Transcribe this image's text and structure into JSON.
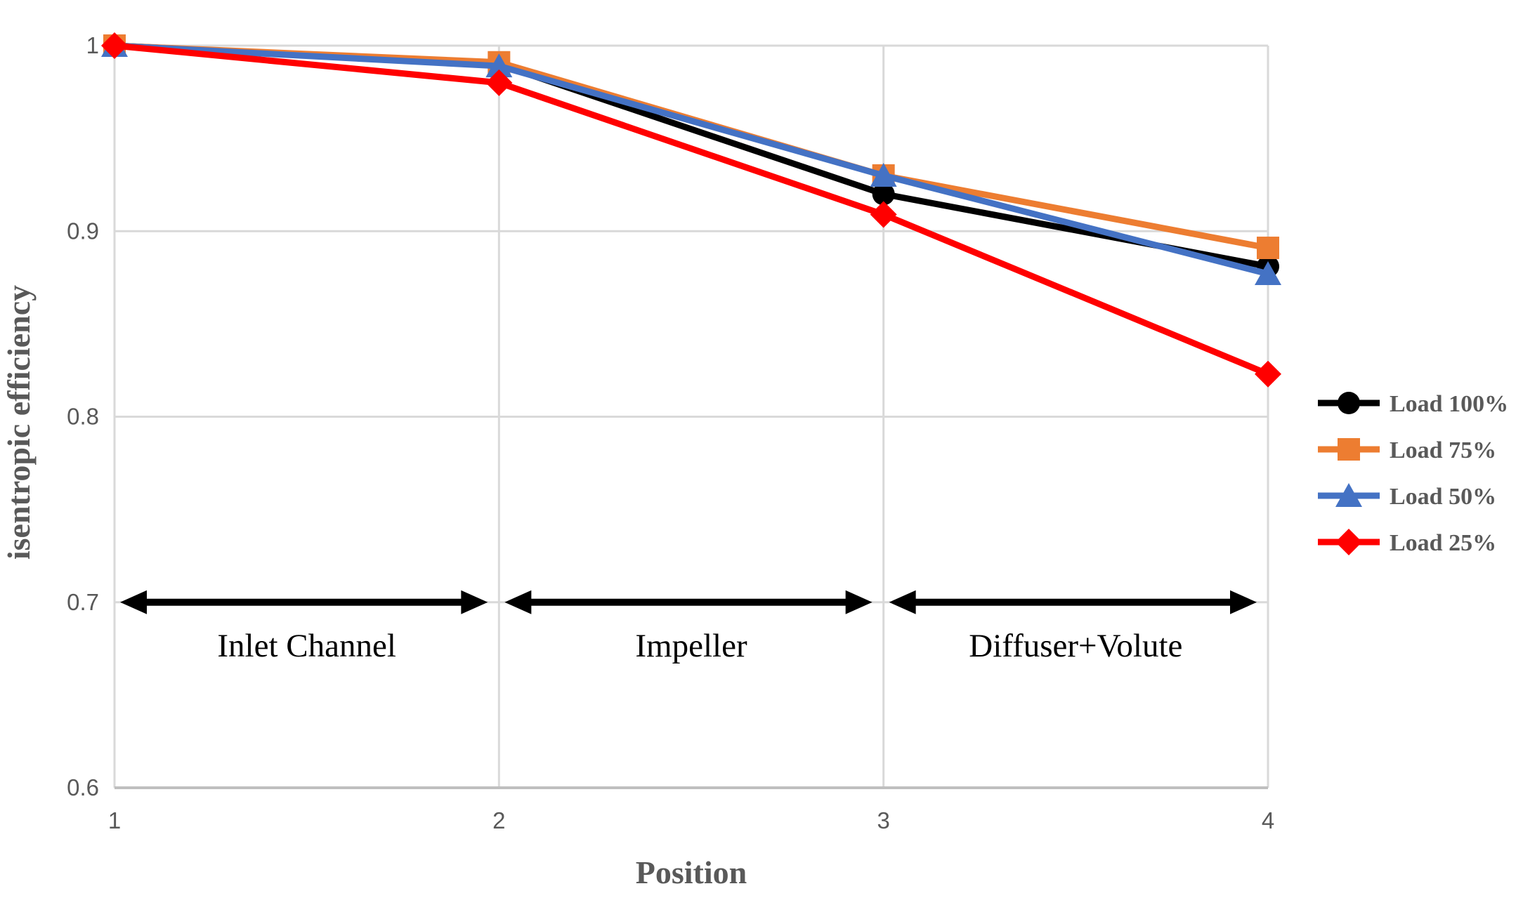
{
  "chart_data": {
    "type": "line",
    "x": [
      1,
      2,
      3,
      4
    ],
    "xlim": [
      1,
      4
    ],
    "ylim": [
      0.6,
      1.0
    ],
    "xticks": [
      1,
      2,
      3,
      4
    ],
    "yticks": [
      0.6,
      0.7,
      0.8,
      0.9,
      1
    ],
    "xlabel": "Position",
    "ylabel": "isentropic efficiency",
    "grid": true,
    "legend_position": "right",
    "grid_color": "#D9D9D9",
    "axis_color": "#BFBFBF",
    "text_color": "#595959",
    "annotation_color": "#000000",
    "series": [
      {
        "name": "Load 100%",
        "color": "#000000",
        "marker": "circle",
        "values": [
          1,
          0.99,
          0.92,
          0.881
        ]
      },
      {
        "name": "Load 75%",
        "color": "#ED7D31",
        "marker": "square",
        "values": [
          1,
          0.991,
          0.93,
          0.891
        ]
      },
      {
        "name": "Load 50%",
        "color": "#4472C4",
        "marker": "triangle",
        "values": [
          1,
          0.989,
          0.93,
          0.877
        ]
      },
      {
        "name": "Load 25%",
        "color": "#FF0000",
        "marker": "diamond",
        "values": [
          1,
          0.98,
          0.909,
          0.823
        ]
      }
    ],
    "annotations": [
      {
        "label": "Inlet Channel",
        "from_x": 1,
        "to_x": 2,
        "arrow_y": 0.7
      },
      {
        "label": "Impeller",
        "from_x": 2,
        "to_x": 3,
        "arrow_y": 0.7
      },
      {
        "label": "Diffuser+Volute",
        "from_x": 3,
        "to_x": 4,
        "arrow_y": 0.7
      }
    ]
  }
}
